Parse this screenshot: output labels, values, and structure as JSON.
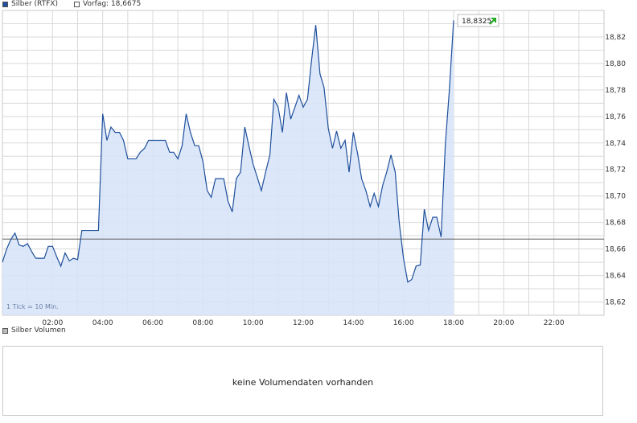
{
  "legend": {
    "series_label": "Silber (RTFX)",
    "series_color": "#1f4f9c",
    "ref_label": "Vorfag: 18,6675",
    "ref_color": "#ffffff"
  },
  "price_badge": {
    "text": "18,8325",
    "arrow_color": "#22aa22"
  },
  "tick_note": "1 Tick = 10 Min.",
  "volume": {
    "label": "Silber Volumen",
    "swatch_color": "#bbbbbb",
    "message": "keine Volumendaten vorhanden"
  },
  "colors": {
    "line": "#1f4f9c",
    "fill": "#d6e4f8",
    "grid": "#d9d9d9",
    "reference": "#555555"
  },
  "chart_data": {
    "type": "area",
    "x_unit": "hours",
    "x_range": [
      0,
      24
    ],
    "y_range": [
      18.61,
      18.84
    ],
    "x_ticks": [
      {
        "x": 2,
        "label": "02:00"
      },
      {
        "x": 4,
        "label": "04:00"
      },
      {
        "x": 6,
        "label": "06:00"
      },
      {
        "x": 8,
        "label": "08:00"
      },
      {
        "x": 10,
        "label": "10:00"
      },
      {
        "x": 12,
        "label": "12:00"
      },
      {
        "x": 14,
        "label": "14:00"
      },
      {
        "x": 16,
        "label": "16:00"
      },
      {
        "x": 18,
        "label": "18:00"
      },
      {
        "x": 20,
        "label": "20:00"
      },
      {
        "x": 22,
        "label": "22:00"
      }
    ],
    "y_ticks": [
      {
        "y": 18.62,
        "label": "18,62"
      },
      {
        "y": 18.64,
        "label": "18,64"
      },
      {
        "y": 18.66,
        "label": "18,66"
      },
      {
        "y": 18.68,
        "label": "18,68"
      },
      {
        "y": 18.7,
        "label": "18,70"
      },
      {
        "y": 18.72,
        "label": "18,72"
      },
      {
        "y": 18.74,
        "label": "18,74"
      },
      {
        "y": 18.76,
        "label": "18,76"
      },
      {
        "y": 18.78,
        "label": "18,78"
      },
      {
        "y": 18.8,
        "label": "18,80"
      },
      {
        "y": 18.82,
        "label": "18,82"
      }
    ],
    "reference_value": 18.6675,
    "grid": true,
    "series": [
      {
        "points": [
          [
            0.0,
            18.65
          ],
          [
            0.17,
            18.66
          ],
          [
            0.33,
            18.667
          ],
          [
            0.5,
            18.672
          ],
          [
            0.67,
            18.663
          ],
          [
            0.83,
            18.662
          ],
          [
            1.0,
            18.664
          ],
          [
            1.17,
            18.658
          ],
          [
            1.33,
            18.653
          ],
          [
            1.5,
            18.653
          ],
          [
            1.67,
            18.653
          ],
          [
            1.83,
            18.662
          ],
          [
            2.0,
            18.662
          ],
          [
            2.17,
            18.654
          ],
          [
            2.33,
            18.647
          ],
          [
            2.5,
            18.657
          ],
          [
            2.67,
            18.651
          ],
          [
            2.83,
            18.653
          ],
          [
            3.0,
            18.652
          ],
          [
            3.17,
            18.674
          ],
          [
            3.33,
            18.674
          ],
          [
            3.5,
            18.674
          ],
          [
            3.67,
            18.674
          ],
          [
            3.83,
            18.674
          ],
          [
            4.0,
            18.762
          ],
          [
            4.17,
            18.742
          ],
          [
            4.33,
            18.752
          ],
          [
            4.5,
            18.748
          ],
          [
            4.67,
            18.748
          ],
          [
            4.83,
            18.742
          ],
          [
            5.0,
            18.728
          ],
          [
            5.17,
            18.728
          ],
          [
            5.33,
            18.728
          ],
          [
            5.5,
            18.733
          ],
          [
            5.67,
            18.736
          ],
          [
            5.83,
            18.742
          ],
          [
            6.0,
            18.742
          ],
          [
            6.17,
            18.742
          ],
          [
            6.33,
            18.742
          ],
          [
            6.5,
            18.742
          ],
          [
            6.67,
            18.733
          ],
          [
            6.83,
            18.733
          ],
          [
            7.0,
            18.728
          ],
          [
            7.17,
            18.738
          ],
          [
            7.33,
            18.762
          ],
          [
            7.5,
            18.748
          ],
          [
            7.67,
            18.738
          ],
          [
            7.83,
            18.738
          ],
          [
            8.0,
            18.726
          ],
          [
            8.17,
            18.704
          ],
          [
            8.33,
            18.699
          ],
          [
            8.5,
            18.713
          ],
          [
            8.67,
            18.713
          ],
          [
            8.83,
            18.713
          ],
          [
            9.0,
            18.696
          ],
          [
            9.17,
            18.688
          ],
          [
            9.33,
            18.713
          ],
          [
            9.5,
            18.718
          ],
          [
            9.67,
            18.752
          ],
          [
            9.83,
            18.738
          ],
          [
            10.0,
            18.724
          ],
          [
            10.17,
            18.714
          ],
          [
            10.33,
            18.704
          ],
          [
            10.5,
            18.718
          ],
          [
            10.67,
            18.731
          ],
          [
            10.83,
            18.773
          ],
          [
            11.0,
            18.767
          ],
          [
            11.17,
            18.748
          ],
          [
            11.33,
            18.778
          ],
          [
            11.5,
            18.758
          ],
          [
            11.67,
            18.767
          ],
          [
            11.83,
            18.776
          ],
          [
            12.0,
            18.767
          ],
          [
            12.17,
            18.773
          ],
          [
            12.33,
            18.802
          ],
          [
            12.5,
            18.829
          ],
          [
            12.67,
            18.792
          ],
          [
            12.83,
            18.782
          ],
          [
            13.0,
            18.751
          ],
          [
            13.17,
            18.736
          ],
          [
            13.33,
            18.749
          ],
          [
            13.5,
            18.736
          ],
          [
            13.67,
            18.742
          ],
          [
            13.83,
            18.718
          ],
          [
            14.0,
            18.748
          ],
          [
            14.17,
            18.732
          ],
          [
            14.33,
            18.713
          ],
          [
            14.5,
            18.704
          ],
          [
            14.67,
            18.692
          ],
          [
            14.83,
            18.702
          ],
          [
            15.0,
            18.692
          ],
          [
            15.17,
            18.708
          ],
          [
            15.33,
            18.718
          ],
          [
            15.5,
            18.731
          ],
          [
            15.67,
            18.718
          ],
          [
            15.83,
            18.68
          ],
          [
            16.0,
            18.653
          ],
          [
            16.17,
            18.635
          ],
          [
            16.33,
            18.637
          ],
          [
            16.5,
            18.647
          ],
          [
            16.67,
            18.648
          ],
          [
            16.83,
            18.69
          ],
          [
            17.0,
            18.674
          ],
          [
            17.17,
            18.684
          ],
          [
            17.33,
            18.684
          ],
          [
            17.5,
            18.669
          ],
          [
            17.67,
            18.739
          ],
          [
            17.83,
            18.78
          ],
          [
            18.0,
            18.8325
          ]
        ]
      }
    ]
  }
}
